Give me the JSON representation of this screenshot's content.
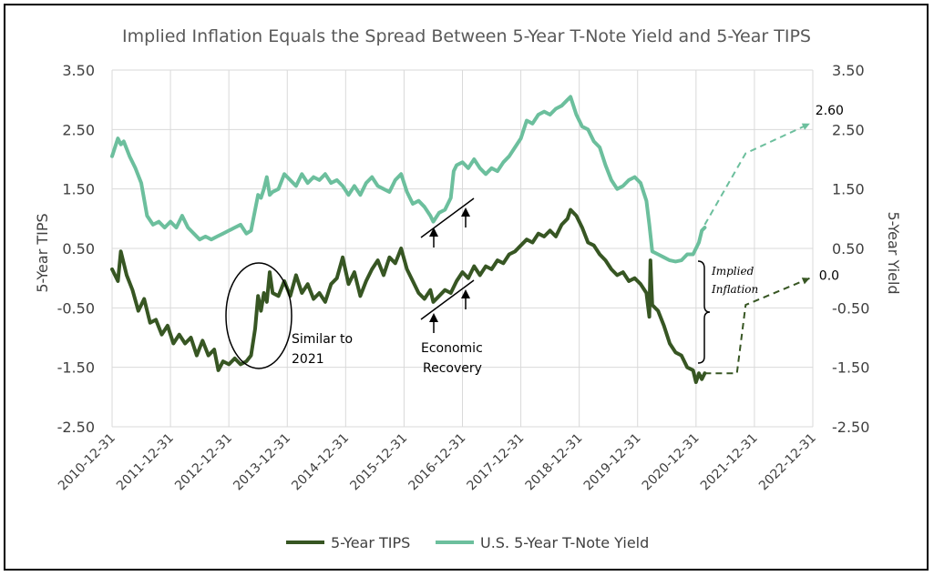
{
  "colors": {
    "tips": "#375623",
    "tnote": "#6cbf9d",
    "grid": "#d9d9d9"
  },
  "chart_data": {
    "type": "line",
    "title": "Implied Inflation Equals the Spread Between 5-Year T-Note Yield and 5-Year TIPS",
    "ylabel_left": "5-Year TIPS",
    "ylabel_right": "5-Year Yield",
    "ylim": [
      -2.5,
      3.5
    ],
    "yticks": [
      "3.50",
      "2.50",
      "1.50",
      "0.50",
      "-0.50",
      "-1.50",
      "-2.50"
    ],
    "yticks_right": [
      "3.50",
      "2.50",
      "1.50",
      "0.50",
      "-0.50",
      "-1.50",
      "-2.50"
    ],
    "xticks": [
      "2010-12-31",
      "2011-12-31",
      "2012-12-31",
      "2013-12-31",
      "2014-12-31",
      "2015-12-31",
      "2016-12-31",
      "2017-12-31",
      "2018-12-31",
      "2019-12-31",
      "2020-12-31",
      "2021-12-31",
      "2022-12-31"
    ],
    "xlim": [
      2011.0,
      2023.0
    ],
    "legend_position": "bottom",
    "series": [
      {
        "name": "5-Year TIPS",
        "style": "solid",
        "points": [
          [
            2011.0,
            0.15
          ],
          [
            2011.1,
            -0.05
          ],
          [
            2011.15,
            0.45
          ],
          [
            2011.25,
            0.05
          ],
          [
            2011.35,
            -0.2
          ],
          [
            2011.45,
            -0.55
          ],
          [
            2011.55,
            -0.35
          ],
          [
            2011.65,
            -0.75
          ],
          [
            2011.75,
            -0.7
          ],
          [
            2011.85,
            -0.95
          ],
          [
            2011.95,
            -0.8
          ],
          [
            2012.05,
            -1.1
          ],
          [
            2012.15,
            -0.95
          ],
          [
            2012.25,
            -1.1
          ],
          [
            2012.35,
            -1.0
          ],
          [
            2012.45,
            -1.3
          ],
          [
            2012.55,
            -1.05
          ],
          [
            2012.65,
            -1.3
          ],
          [
            2012.75,
            -1.2
          ],
          [
            2012.82,
            -1.55
          ],
          [
            2012.9,
            -1.4
          ],
          [
            2013.0,
            -1.45
          ],
          [
            2013.1,
            -1.35
          ],
          [
            2013.2,
            -1.45
          ],
          [
            2013.3,
            -1.4
          ],
          [
            2013.38,
            -1.3
          ],
          [
            2013.45,
            -0.85
          ],
          [
            2013.5,
            -0.3
          ],
          [
            2013.55,
            -0.55
          ],
          [
            2013.6,
            -0.25
          ],
          [
            2013.65,
            -0.4
          ],
          [
            2013.7,
            0.1
          ],
          [
            2013.75,
            -0.25
          ],
          [
            2013.85,
            -0.3
          ],
          [
            2013.95,
            -0.05
          ],
          [
            2014.05,
            -0.3
          ],
          [
            2014.15,
            0.05
          ],
          [
            2014.25,
            -0.25
          ],
          [
            2014.35,
            -0.1
          ],
          [
            2014.45,
            -0.35
          ],
          [
            2014.55,
            -0.25
          ],
          [
            2014.65,
            -0.4
          ],
          [
            2014.75,
            -0.1
          ],
          [
            2014.85,
            0.0
          ],
          [
            2014.95,
            0.35
          ],
          [
            2015.05,
            -0.1
          ],
          [
            2015.15,
            0.1
          ],
          [
            2015.25,
            -0.3
          ],
          [
            2015.35,
            -0.05
          ],
          [
            2015.45,
            0.15
          ],
          [
            2015.55,
            0.3
          ],
          [
            2015.65,
            0.05
          ],
          [
            2015.75,
            0.35
          ],
          [
            2015.85,
            0.25
          ],
          [
            2015.95,
            0.5
          ],
          [
            2016.05,
            0.15
          ],
          [
            2016.15,
            -0.05
          ],
          [
            2016.25,
            -0.25
          ],
          [
            2016.35,
            -0.35
          ],
          [
            2016.45,
            -0.2
          ],
          [
            2016.5,
            -0.4
          ],
          [
            2016.6,
            -0.3
          ],
          [
            2016.7,
            -0.2
          ],
          [
            2016.8,
            -0.25
          ],
          [
            2016.9,
            -0.05
          ],
          [
            2017.0,
            0.1
          ],
          [
            2017.1,
            0.0
          ],
          [
            2017.2,
            0.2
          ],
          [
            2017.3,
            0.05
          ],
          [
            2017.4,
            0.2
          ],
          [
            2017.5,
            0.15
          ],
          [
            2017.6,
            0.3
          ],
          [
            2017.7,
            0.25
          ],
          [
            2017.8,
            0.4
          ],
          [
            2017.9,
            0.45
          ],
          [
            2018.0,
            0.55
          ],
          [
            2018.1,
            0.65
          ],
          [
            2018.2,
            0.6
          ],
          [
            2018.3,
            0.75
          ],
          [
            2018.4,
            0.7
          ],
          [
            2018.5,
            0.8
          ],
          [
            2018.6,
            0.7
          ],
          [
            2018.7,
            0.9
          ],
          [
            2018.8,
            1.0
          ],
          [
            2018.85,
            1.15
          ],
          [
            2018.95,
            1.05
          ],
          [
            2019.05,
            0.85
          ],
          [
            2019.15,
            0.6
          ],
          [
            2019.25,
            0.55
          ],
          [
            2019.35,
            0.4
          ],
          [
            2019.45,
            0.3
          ],
          [
            2019.55,
            0.15
          ],
          [
            2019.65,
            0.05
          ],
          [
            2019.75,
            0.1
          ],
          [
            2019.85,
            -0.05
          ],
          [
            2019.95,
            0.0
          ],
          [
            2020.05,
            -0.1
          ],
          [
            2020.15,
            -0.25
          ],
          [
            2020.2,
            -0.65
          ],
          [
            2020.22,
            0.3
          ],
          [
            2020.25,
            -0.45
          ],
          [
            2020.35,
            -0.55
          ],
          [
            2020.45,
            -0.8
          ],
          [
            2020.55,
            -1.1
          ],
          [
            2020.65,
            -1.25
          ],
          [
            2020.75,
            -1.3
          ],
          [
            2020.85,
            -1.5
          ],
          [
            2020.95,
            -1.55
          ],
          [
            2021.0,
            -1.75
          ],
          [
            2021.05,
            -1.6
          ],
          [
            2021.1,
            -1.7
          ],
          [
            2021.15,
            -1.6
          ]
        ]
      },
      {
        "name": "U.S. 5-Year T-Note Yield",
        "style": "solid",
        "points": [
          [
            2011.0,
            2.05
          ],
          [
            2011.05,
            2.2
          ],
          [
            2011.1,
            2.35
          ],
          [
            2011.15,
            2.25
          ],
          [
            2011.2,
            2.3
          ],
          [
            2011.3,
            2.05
          ],
          [
            2011.4,
            1.85
          ],
          [
            2011.5,
            1.6
          ],
          [
            2011.6,
            1.05
          ],
          [
            2011.7,
            0.9
          ],
          [
            2011.8,
            0.95
          ],
          [
            2011.9,
            0.85
          ],
          [
            2012.0,
            0.95
          ],
          [
            2012.1,
            0.85
          ],
          [
            2012.2,
            1.05
          ],
          [
            2012.3,
            0.85
          ],
          [
            2012.4,
            0.75
          ],
          [
            2012.5,
            0.65
          ],
          [
            2012.6,
            0.7
          ],
          [
            2012.7,
            0.65
          ],
          [
            2012.8,
            0.7
          ],
          [
            2012.9,
            0.75
          ],
          [
            2013.0,
            0.8
          ],
          [
            2013.1,
            0.85
          ],
          [
            2013.2,
            0.9
          ],
          [
            2013.3,
            0.75
          ],
          [
            2013.38,
            0.8
          ],
          [
            2013.45,
            1.15
          ],
          [
            2013.5,
            1.4
          ],
          [
            2013.55,
            1.35
          ],
          [
            2013.6,
            1.5
          ],
          [
            2013.65,
            1.7
          ],
          [
            2013.7,
            1.4
          ],
          [
            2013.75,
            1.45
          ],
          [
            2013.85,
            1.5
          ],
          [
            2013.95,
            1.75
          ],
          [
            2014.05,
            1.65
          ],
          [
            2014.15,
            1.55
          ],
          [
            2014.25,
            1.75
          ],
          [
            2014.35,
            1.6
          ],
          [
            2014.45,
            1.7
          ],
          [
            2014.55,
            1.65
          ],
          [
            2014.65,
            1.75
          ],
          [
            2014.75,
            1.6
          ],
          [
            2014.85,
            1.65
          ],
          [
            2014.95,
            1.55
          ],
          [
            2015.05,
            1.4
          ],
          [
            2015.15,
            1.55
          ],
          [
            2015.25,
            1.4
          ],
          [
            2015.35,
            1.6
          ],
          [
            2015.45,
            1.7
          ],
          [
            2015.55,
            1.55
          ],
          [
            2015.65,
            1.5
          ],
          [
            2015.75,
            1.45
          ],
          [
            2015.85,
            1.65
          ],
          [
            2015.95,
            1.75
          ],
          [
            2016.05,
            1.45
          ],
          [
            2016.15,
            1.25
          ],
          [
            2016.25,
            1.3
          ],
          [
            2016.35,
            1.2
          ],
          [
            2016.45,
            1.05
          ],
          [
            2016.5,
            0.95
          ],
          [
            2016.6,
            1.1
          ],
          [
            2016.7,
            1.15
          ],
          [
            2016.8,
            1.35
          ],
          [
            2016.85,
            1.8
          ],
          [
            2016.9,
            1.9
          ],
          [
            2017.0,
            1.95
          ],
          [
            2017.1,
            1.85
          ],
          [
            2017.2,
            2.0
          ],
          [
            2017.3,
            1.85
          ],
          [
            2017.4,
            1.75
          ],
          [
            2017.5,
            1.85
          ],
          [
            2017.6,
            1.8
          ],
          [
            2017.7,
            1.95
          ],
          [
            2017.8,
            2.05
          ],
          [
            2017.9,
            2.2
          ],
          [
            2018.0,
            2.35
          ],
          [
            2018.1,
            2.65
          ],
          [
            2018.2,
            2.6
          ],
          [
            2018.3,
            2.75
          ],
          [
            2018.4,
            2.8
          ],
          [
            2018.5,
            2.75
          ],
          [
            2018.6,
            2.85
          ],
          [
            2018.7,
            2.9
          ],
          [
            2018.8,
            3.0
          ],
          [
            2018.85,
            3.05
          ],
          [
            2018.95,
            2.75
          ],
          [
            2019.05,
            2.55
          ],
          [
            2019.15,
            2.5
          ],
          [
            2019.25,
            2.3
          ],
          [
            2019.35,
            2.2
          ],
          [
            2019.45,
            1.9
          ],
          [
            2019.55,
            1.65
          ],
          [
            2019.65,
            1.5
          ],
          [
            2019.75,
            1.55
          ],
          [
            2019.85,
            1.65
          ],
          [
            2019.95,
            1.7
          ],
          [
            2020.05,
            1.6
          ],
          [
            2020.15,
            1.3
          ],
          [
            2020.2,
            0.9
          ],
          [
            2020.25,
            0.45
          ],
          [
            2020.35,
            0.4
          ],
          [
            2020.45,
            0.35
          ],
          [
            2020.55,
            0.3
          ],
          [
            2020.65,
            0.28
          ],
          [
            2020.75,
            0.3
          ],
          [
            2020.85,
            0.4
          ],
          [
            2020.95,
            0.4
          ],
          [
            2021.05,
            0.6
          ],
          [
            2021.1,
            0.8
          ],
          [
            2021.15,
            0.85
          ]
        ]
      }
    ],
    "projections": [
      {
        "series": "5-Year T-Note Yield",
        "style": "dashed",
        "points": [
          [
            2021.15,
            0.9
          ],
          [
            2021.85,
            2.1
          ],
          [
            2022.95,
            2.6
          ]
        ],
        "end_label": "2.60"
      },
      {
        "series": "5-Year TIPS",
        "style": "dashed",
        "points": [
          [
            2021.15,
            -1.6
          ],
          [
            2021.7,
            -1.6
          ],
          [
            2021.85,
            -0.45
          ],
          [
            2022.95,
            0.0
          ]
        ],
        "end_label": "0.0"
      }
    ],
    "annotations": {
      "similar": [
        "Similar to",
        "2021"
      ],
      "recovery": [
        "Economic",
        "Recovery"
      ],
      "implied": [
        "Implied",
        "Inflation"
      ]
    }
  }
}
